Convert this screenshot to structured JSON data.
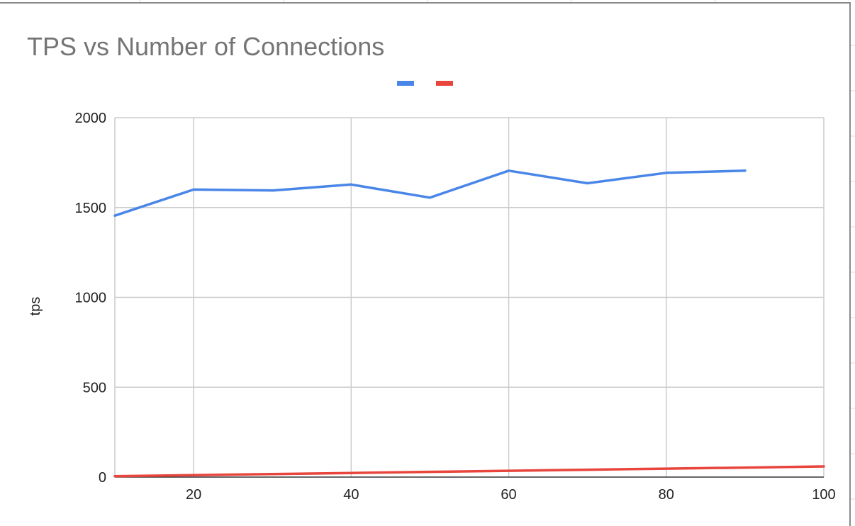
{
  "chart_data": {
    "type": "line",
    "title": "TPS vs Number of Connections",
    "xlabel": "",
    "ylabel": "tps",
    "xlim": [
      10,
      100
    ],
    "ylim": [
      0,
      2000
    ],
    "xticks": [
      20,
      40,
      60,
      80,
      100
    ],
    "yticks": [
      0,
      500,
      1000,
      1500,
      2000
    ],
    "grid": true,
    "legend_position": "top",
    "series": [
      {
        "color": "#4a86e8",
        "x": [
          10,
          20,
          30,
          40,
          50,
          60,
          70,
          80,
          90
        ],
        "y": [
          1455,
          1600,
          1595,
          1628,
          1555,
          1705,
          1635,
          1693,
          1705
        ]
      },
      {
        "color": "#e8453c",
        "x": [
          10,
          20,
          30,
          40,
          50,
          60,
          70,
          80,
          90,
          100
        ],
        "y": [
          5,
          11,
          17,
          23,
          29,
          35,
          41,
          47,
          53,
          59
        ]
      }
    ]
  }
}
